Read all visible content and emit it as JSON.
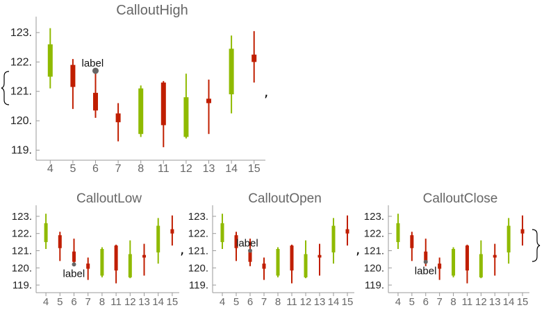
{
  "colors": {
    "up": "#8fba00",
    "down": "#c01e00",
    "axis": "#999999",
    "callout_point": "#666666"
  },
  "separator": ",",
  "chart_data": [
    {
      "type": "candlestick",
      "title": "CalloutHigh",
      "categories": [
        "4",
        "5",
        "6",
        "7",
        "8",
        "11",
        "12",
        "13",
        "14",
        "15"
      ],
      "ohlc": [
        {
          "x": "4",
          "open": 121.5,
          "high": 123.15,
          "low": 121.1,
          "close": 122.6
        },
        {
          "x": "5",
          "open": 121.9,
          "high": 122.1,
          "low": 120.4,
          "close": 121.15
        },
        {
          "x": "6",
          "open": 120.95,
          "high": 121.7,
          "low": 120.1,
          "close": 120.35
        },
        {
          "x": "7",
          "open": 120.25,
          "high": 120.6,
          "low": 119.3,
          "close": 119.95
        },
        {
          "x": "8",
          "open": 119.55,
          "high": 121.2,
          "low": 119.45,
          "close": 121.1
        },
        {
          "x": "11",
          "open": 121.3,
          "high": 121.35,
          "low": 119.1,
          "close": 119.85
        },
        {
          "x": "12",
          "open": 119.45,
          "high": 121.6,
          "low": 119.4,
          "close": 120.8
        },
        {
          "x": "13",
          "open": 120.75,
          "high": 121.4,
          "low": 119.55,
          "close": 120.6
        },
        {
          "x": "14",
          "open": 120.9,
          "high": 122.9,
          "low": 120.25,
          "close": 122.45
        },
        {
          "x": "15",
          "open": 122.25,
          "high": 123.05,
          "low": 121.3,
          "close": 122.0
        }
      ],
      "yticks": [
        "119.",
        "120.",
        "121.",
        "122.",
        "123."
      ],
      "ylim": [
        118.8,
        123.4
      ],
      "callout": {
        "label": "label",
        "x": "6",
        "y": 121.7
      }
    },
    {
      "type": "candlestick",
      "title": "CalloutLow",
      "categories": [
        "4",
        "5",
        "6",
        "7",
        "8",
        "11",
        "12",
        "13",
        "14",
        "15"
      ],
      "ohlc": [
        {
          "x": "4",
          "open": 121.5,
          "high": 123.15,
          "low": 121.1,
          "close": 122.6
        },
        {
          "x": "5",
          "open": 121.9,
          "high": 122.1,
          "low": 120.4,
          "close": 121.15
        },
        {
          "x": "6",
          "open": 120.95,
          "high": 121.7,
          "low": 120.1,
          "close": 120.35
        },
        {
          "x": "7",
          "open": 120.25,
          "high": 120.6,
          "low": 119.3,
          "close": 119.95
        },
        {
          "x": "8",
          "open": 119.55,
          "high": 121.2,
          "low": 119.45,
          "close": 121.1
        },
        {
          "x": "11",
          "open": 121.3,
          "high": 121.35,
          "low": 119.1,
          "close": 119.85
        },
        {
          "x": "12",
          "open": 119.45,
          "high": 121.6,
          "low": 119.4,
          "close": 120.8
        },
        {
          "x": "13",
          "open": 120.75,
          "high": 121.4,
          "low": 119.55,
          "close": 120.6
        },
        {
          "x": "14",
          "open": 120.9,
          "high": 122.9,
          "low": 120.25,
          "close": 122.45
        },
        {
          "x": "15",
          "open": 122.25,
          "high": 123.05,
          "low": 121.3,
          "close": 122.0
        }
      ],
      "yticks": [
        "119.",
        "120.",
        "121.",
        "122.",
        "123."
      ],
      "ylim": [
        118.8,
        123.4
      ],
      "callout": {
        "label": "label",
        "x": "6",
        "y": 120.2
      }
    },
    {
      "type": "candlestick",
      "title": "CalloutOpen",
      "categories": [
        "4",
        "5",
        "6",
        "7",
        "8",
        "11",
        "12",
        "13",
        "14",
        "15"
      ],
      "ohlc": [
        {
          "x": "4",
          "open": 121.5,
          "high": 123.15,
          "low": 121.1,
          "close": 122.6
        },
        {
          "x": "5",
          "open": 121.9,
          "high": 122.1,
          "low": 120.4,
          "close": 121.15
        },
        {
          "x": "6",
          "open": 120.95,
          "high": 121.7,
          "low": 120.1,
          "close": 120.35
        },
        {
          "x": "7",
          "open": 120.25,
          "high": 120.6,
          "low": 119.3,
          "close": 119.95
        },
        {
          "x": "8",
          "open": 119.55,
          "high": 121.2,
          "low": 119.45,
          "close": 121.1
        },
        {
          "x": "11",
          "open": 121.3,
          "high": 121.35,
          "low": 119.1,
          "close": 119.85
        },
        {
          "x": "12",
          "open": 119.45,
          "high": 121.6,
          "low": 119.4,
          "close": 120.8
        },
        {
          "x": "13",
          "open": 120.75,
          "high": 121.4,
          "low": 119.55,
          "close": 120.6
        },
        {
          "x": "14",
          "open": 120.9,
          "high": 122.9,
          "low": 120.25,
          "close": 122.45
        },
        {
          "x": "15",
          "open": 122.25,
          "high": 123.05,
          "low": 121.3,
          "close": 122.0
        }
      ],
      "yticks": [
        "119.",
        "120.",
        "121.",
        "122.",
        "123."
      ],
      "ylim": [
        118.8,
        123.4
      ],
      "callout": {
        "label": "label",
        "x": "6",
        "y": 121.0
      }
    },
    {
      "type": "candlestick",
      "title": "CalloutClose",
      "categories": [
        "4",
        "5",
        "6",
        "7",
        "8",
        "11",
        "12",
        "13",
        "14",
        "15"
      ],
      "ohlc": [
        {
          "x": "4",
          "open": 121.5,
          "high": 123.15,
          "low": 121.1,
          "close": 122.6
        },
        {
          "x": "5",
          "open": 121.9,
          "high": 122.1,
          "low": 120.4,
          "close": 121.15
        },
        {
          "x": "6",
          "open": 120.95,
          "high": 121.7,
          "low": 120.1,
          "close": 120.35
        },
        {
          "x": "7",
          "open": 120.25,
          "high": 120.6,
          "low": 119.3,
          "close": 119.95
        },
        {
          "x": "8",
          "open": 119.55,
          "high": 121.2,
          "low": 119.45,
          "close": 121.1
        },
        {
          "x": "11",
          "open": 121.3,
          "high": 121.35,
          "low": 119.1,
          "close": 119.85
        },
        {
          "x": "12",
          "open": 119.45,
          "high": 121.6,
          "low": 119.4,
          "close": 120.8
        },
        {
          "x": "13",
          "open": 120.75,
          "high": 121.4,
          "low": 119.55,
          "close": 120.6
        },
        {
          "x": "14",
          "open": 120.9,
          "high": 122.9,
          "low": 120.25,
          "close": 122.45
        },
        {
          "x": "15",
          "open": 122.25,
          "high": 123.05,
          "low": 121.3,
          "close": 122.0
        }
      ],
      "yticks": [
        "119.",
        "120.",
        "121.",
        "122.",
        "123."
      ],
      "ylim": [
        118.8,
        123.4
      ],
      "callout": {
        "label": "label",
        "x": "6",
        "y": 120.35
      }
    }
  ]
}
